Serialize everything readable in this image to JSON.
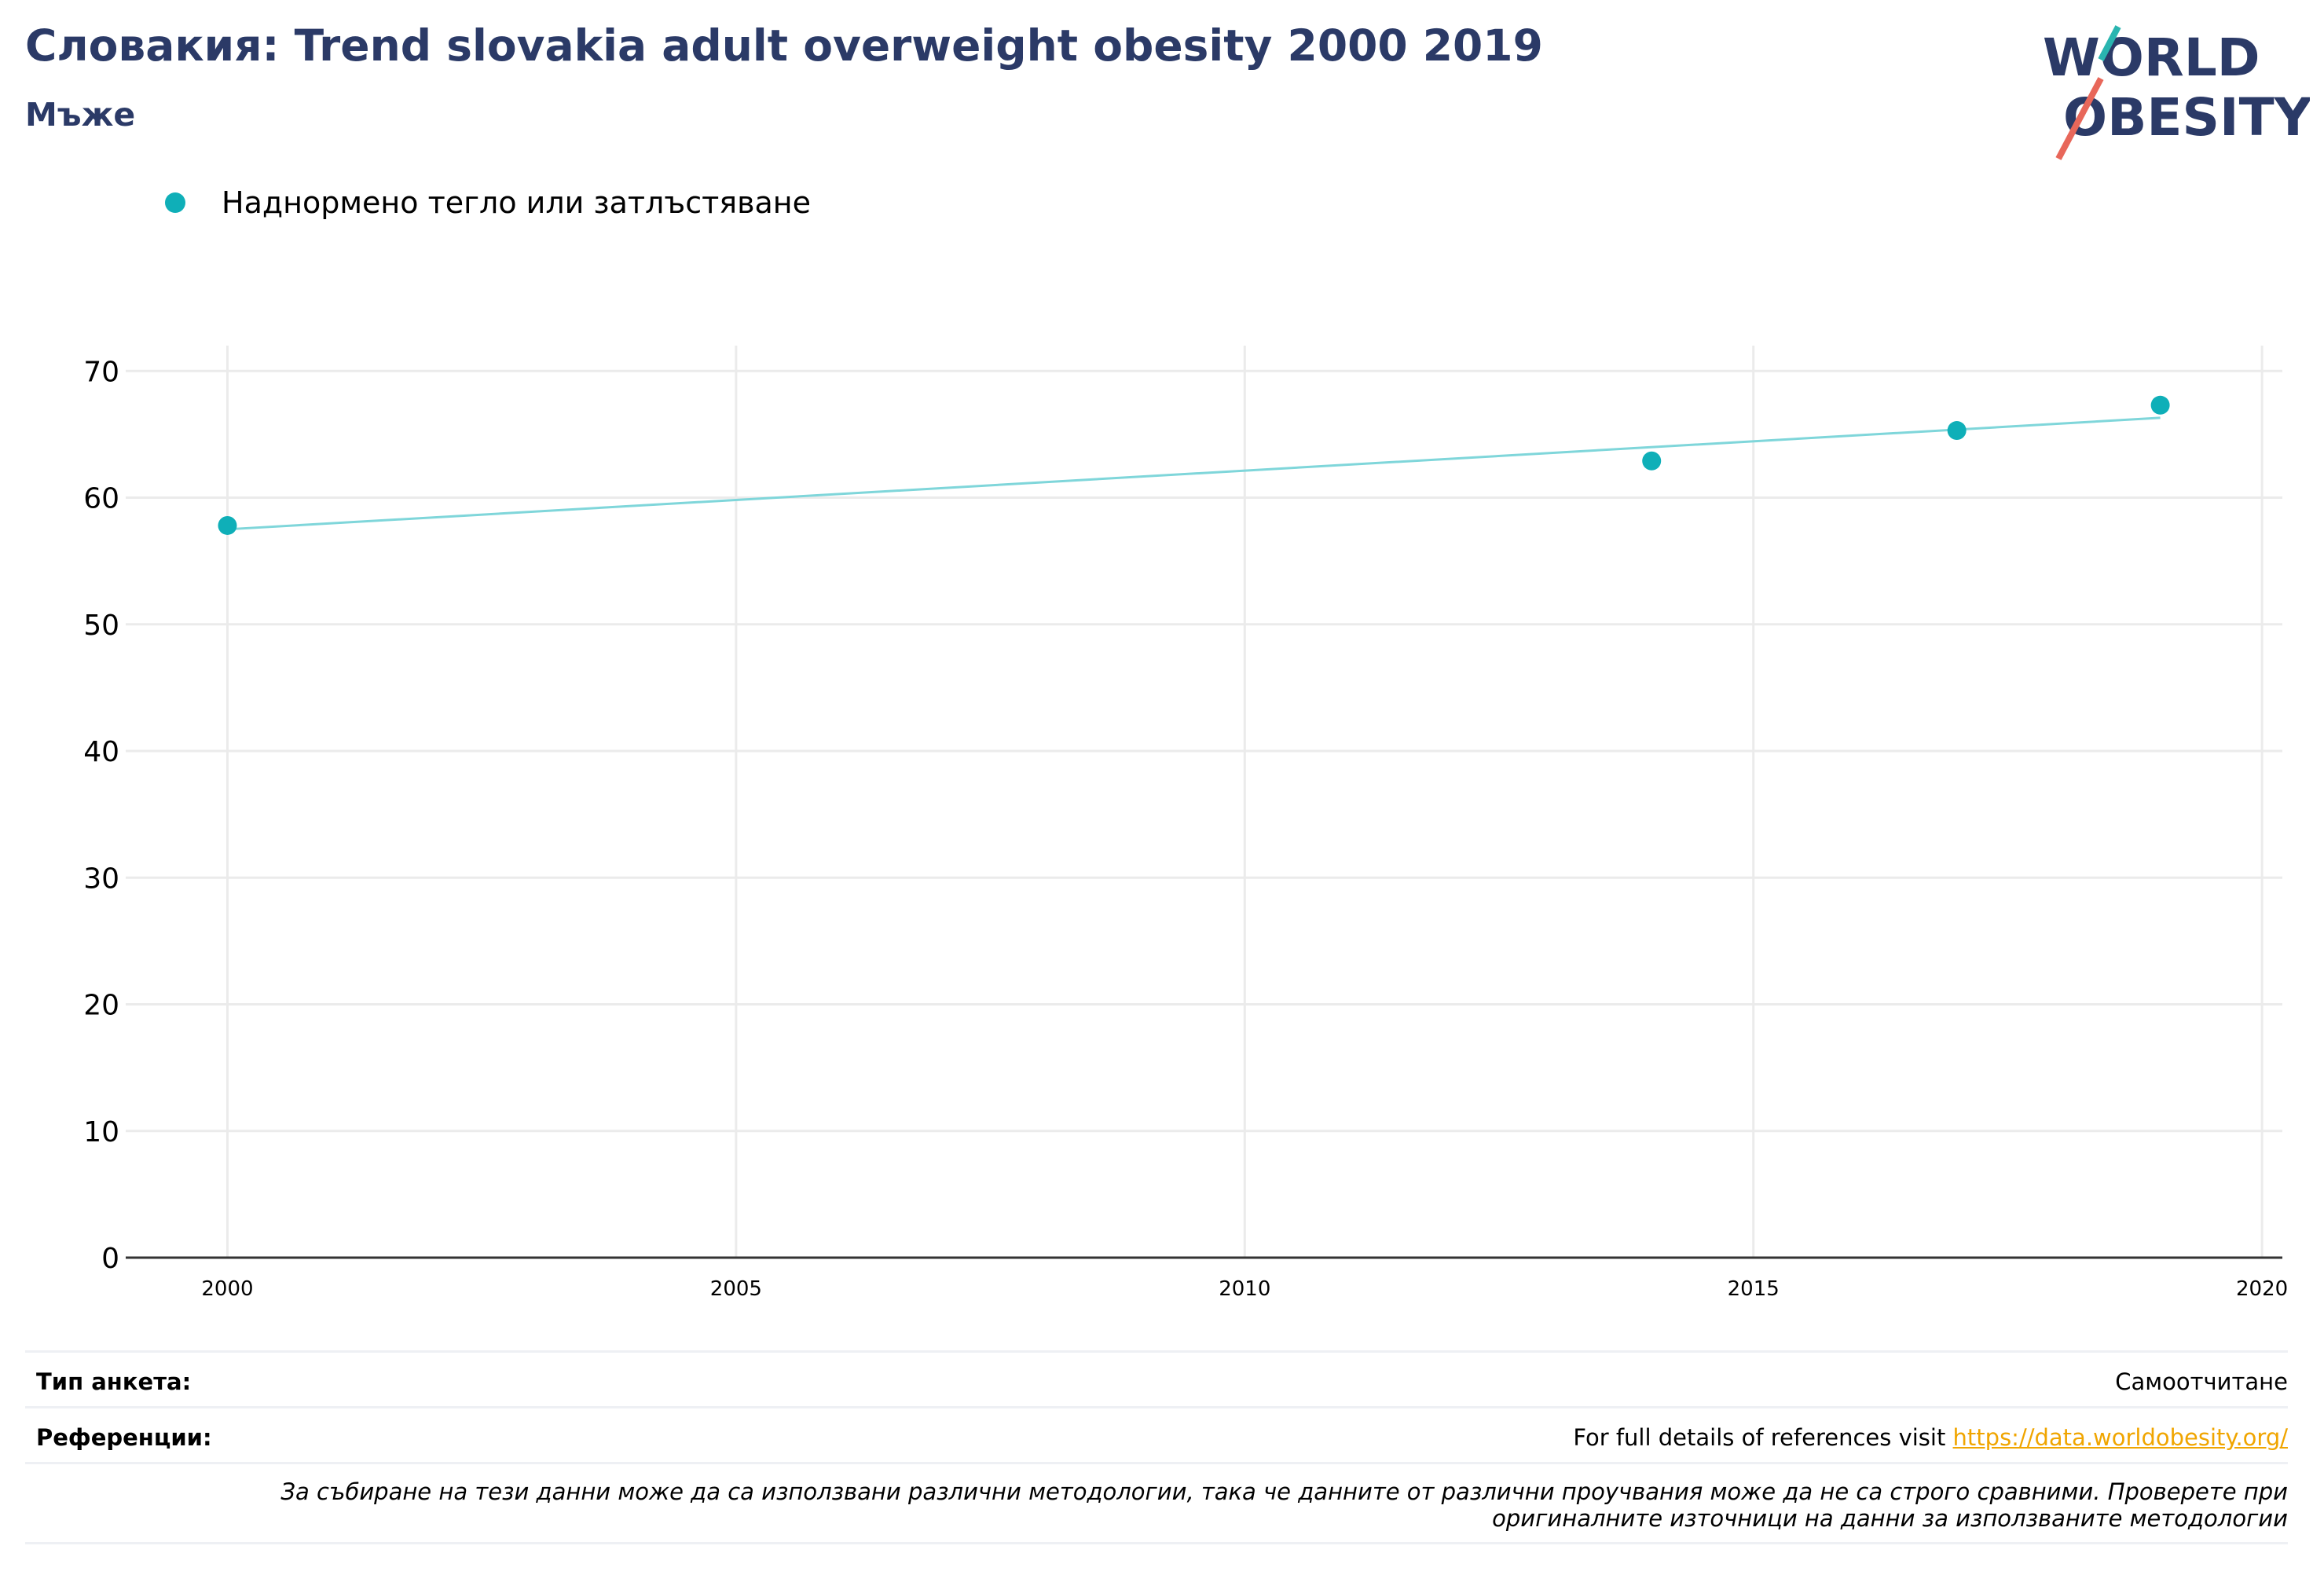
{
  "header": {
    "title": "Словакия: Trend slovakia adult overweight obesity 2000 2019",
    "subtitle": "Мъже"
  },
  "logo": {
    "line1": "WORLD",
    "line2": "OBESITY"
  },
  "colors": {
    "title": "#2b3a67",
    "series": "#0fafb8",
    "trend": "#7fd6da",
    "link": "#f0a500",
    "grid": "#ebebeb"
  },
  "chart_data": {
    "type": "scatter",
    "series": [
      {
        "name": "Наднормено тегло или затлъстяване",
        "x": [
          2000,
          2014,
          2017,
          2019
        ],
        "y": [
          57.8,
          62.9,
          65.3,
          67.3
        ]
      }
    ],
    "trendline": {
      "x": [
        2000,
        2019
      ],
      "y": [
        57.5,
        66.3
      ]
    },
    "xlim": [
      1999,
      2020.2
    ],
    "ylim": [
      0,
      72
    ],
    "xticks": [
      2000,
      2005,
      2010,
      2015,
      2020
    ],
    "yticks": [
      0,
      10,
      20,
      30,
      40,
      50,
      60,
      70
    ],
    "grid": true,
    "legend": "top-left"
  },
  "footer": {
    "survey_label": "Тип анкета:",
    "survey_value": "Самоотчитане",
    "refs_label": "Референции:",
    "refs_text": "For full details of references visit ",
    "refs_link": "https://data.worldobesity.org/",
    "note": "За събиране на тези данни може да са използвани различни методологии, така че данните от различни проучвания може да не са строго сравними. Проверете при оригиналните източници на данни за използваните методологии"
  }
}
